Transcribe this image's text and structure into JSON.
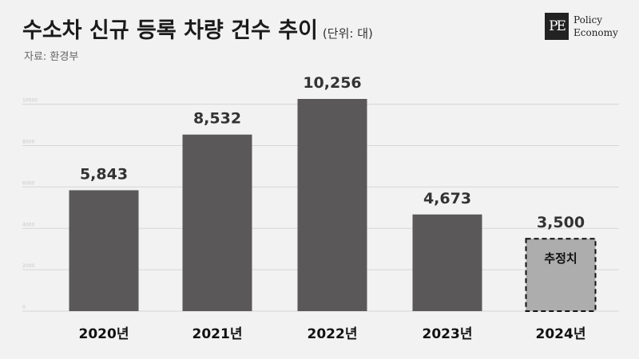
{
  "header": {
    "title": "수소차 신규 등록 차량 건수 추이",
    "unit": "(단위: 대)",
    "source": "자료: 환경부"
  },
  "logo": {
    "mark": "PE",
    "line1": "Policy",
    "line2": "Economy"
  },
  "chart_data": {
    "type": "bar",
    "categories": [
      "2020년",
      "2021년",
      "2022년",
      "2023년",
      "2024년"
    ],
    "values": [
      5843,
      8532,
      10256,
      4673,
      3500
    ],
    "value_labels": [
      "5,843",
      "8,532",
      "10,256",
      "4,673",
      "3,500"
    ],
    "estimate_index": 4,
    "estimate_label": "추정치",
    "yticks": [
      0,
      2000,
      4000,
      6000,
      8000,
      10000
    ],
    "ytick_labels": [
      "0",
      "2000",
      "4000",
      "6000",
      "8000",
      "10000"
    ],
    "ylim": [
      0,
      10800
    ],
    "grid": true,
    "colors": {
      "bar": "#5a5859",
      "estimate": "#adadad",
      "grid": "#d6d6d6"
    }
  }
}
